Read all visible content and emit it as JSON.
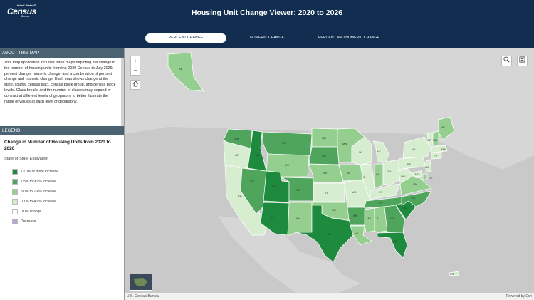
{
  "header": {
    "logo_small": "United States®",
    "logo_big": "Census",
    "logo_tiny": "Bureau",
    "title": "Housing Unit Change Viewer: 2020 to 2026"
  },
  "tabs": [
    {
      "label": "PERCENT CHANGE",
      "active": true
    },
    {
      "label": "NUMERIC CHANGE",
      "active": false
    },
    {
      "label": "PERCENT AND NUMERIC CHANGE",
      "active": false
    }
  ],
  "about": {
    "heading": "ABOUT THIS MAP",
    "text": "This map application includes three maps depicting the change in the number of housing units from the 2020 Census to July 2026: percent change, numeric change, and a combination of percent change and numeric change. Each map shows change at the state, county, census tract, census block group, and census block levels. Class breaks and the number of classes may expand or contract at different levels of geography to better illustrate the range of values at each level of geography."
  },
  "legend": {
    "heading": "LEGEND",
    "title": "Change in Number of Housing Units from 2020 to 2026",
    "subtitle": "State or State Equivalent",
    "items": [
      {
        "label": "10.0% or more increase",
        "color": "#1e8a3e"
      },
      {
        "label": "7.5% to 9.9% increase",
        "color": "#4fa55c"
      },
      {
        "label": "5.0% to 7.4% increase",
        "color": "#95cf8f"
      },
      {
        "label": "0.1% to 4.9% increase",
        "color": "#d6edd0"
      },
      {
        "label": "0.0% change",
        "color": "#ffffff"
      },
      {
        "label": "Decrease",
        "color": "#b9a7d0"
      }
    ]
  },
  "map": {
    "zoom_in": "+",
    "zoom_out": "−",
    "home_icon": "home-icon",
    "search_icon": "search-icon",
    "basemap_icon": "layers-icon",
    "states": [
      {
        "abbr": "WA",
        "cls": "c2"
      },
      {
        "abbr": "OR",
        "cls": "c4"
      },
      {
        "abbr": "CA",
        "cls": "c4"
      },
      {
        "abbr": "ID",
        "cls": "c1"
      },
      {
        "abbr": "NV",
        "cls": "c2"
      },
      {
        "abbr": "UT",
        "cls": "c1"
      },
      {
        "abbr": "AZ",
        "cls": "c1"
      },
      {
        "abbr": "MT",
        "cls": "c2"
      },
      {
        "abbr": "WY",
        "cls": "c3"
      },
      {
        "abbr": "CO",
        "cls": "c2"
      },
      {
        "abbr": "NM",
        "cls": "c3"
      },
      {
        "abbr": "ND",
        "cls": "c3"
      },
      {
        "abbr": "SD",
        "cls": "c2"
      },
      {
        "abbr": "NE",
        "cls": "c3"
      },
      {
        "abbr": "KS",
        "cls": "c4"
      },
      {
        "abbr": "OK",
        "cls": "c3"
      },
      {
        "abbr": "TX",
        "cls": "c1"
      },
      {
        "abbr": "MN",
        "cls": "c3"
      },
      {
        "abbr": "IA",
        "cls": "c3"
      },
      {
        "abbr": "MO",
        "cls": "c4"
      },
      {
        "abbr": "AR",
        "cls": "c2"
      },
      {
        "abbr": "LA",
        "cls": "c3"
      },
      {
        "abbr": "WI",
        "cls": "c4"
      },
      {
        "abbr": "IL",
        "cls": "c4"
      },
      {
        "abbr": "MI",
        "cls": "c4"
      },
      {
        "abbr": "IN",
        "cls": "c3"
      },
      {
        "abbr": "OH",
        "cls": "c4"
      },
      {
        "abbr": "KY",
        "cls": "c4"
      },
      {
        "abbr": "TN",
        "cls": "c2"
      },
      {
        "abbr": "MS",
        "cls": "c3"
      },
      {
        "abbr": "AL",
        "cls": "c3"
      },
      {
        "abbr": "GA",
        "cls": "c2"
      },
      {
        "abbr": "FL",
        "cls": "c1"
      },
      {
        "abbr": "SC",
        "cls": "c1"
      },
      {
        "abbr": "NC",
        "cls": "c2"
      },
      {
        "abbr": "VA",
        "cls": "c3"
      },
      {
        "abbr": "WV",
        "cls": "c4"
      },
      {
        "abbr": "PA",
        "cls": "c4"
      },
      {
        "abbr": "NY",
        "cls": "c4"
      },
      {
        "abbr": "VT",
        "cls": "c4"
      },
      {
        "abbr": "ME",
        "cls": "c3"
      },
      {
        "abbr": "NH",
        "cls": "c3"
      },
      {
        "abbr": "MA",
        "cls": "c4"
      },
      {
        "abbr": "CT",
        "cls": "c4"
      },
      {
        "abbr": "NJ",
        "cls": "c4"
      },
      {
        "abbr": "DE",
        "cls": "c3"
      },
      {
        "abbr": "MD",
        "cls": "c4"
      },
      {
        "abbr": "AK",
        "cls": "c3"
      },
      {
        "abbr": "PR",
        "cls": "c4"
      }
    ]
  },
  "footer": {
    "attribution": "U.S. Census Bureau",
    "powered": "Powered by Esri"
  }
}
